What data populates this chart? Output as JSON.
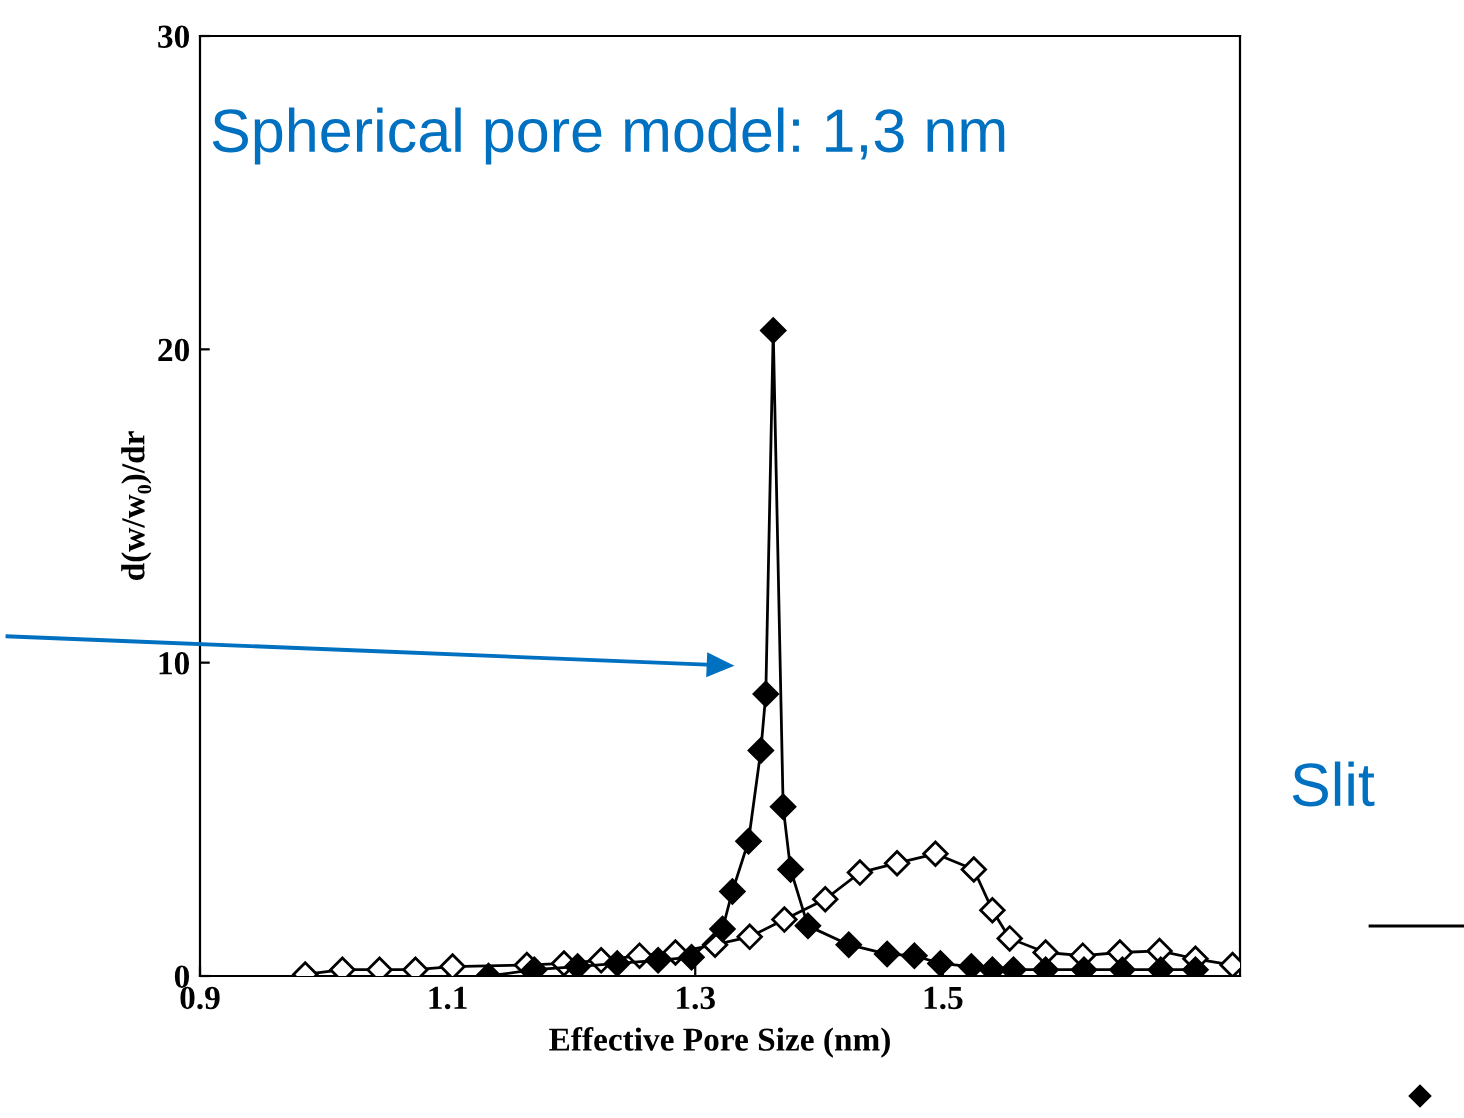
{
  "chart_data": {
    "type": "line",
    "xlabel": "Effective Pore Size (nm)",
    "ylabel": "d(w/w₀)/dr",
    "xlim": [
      0.9,
      1.74
    ],
    "ylim": [
      0,
      30
    ],
    "xticks": [
      0.9,
      1.1,
      1.3,
      1.5
    ],
    "yticks": [
      0,
      10,
      20,
      30
    ],
    "marker": "diamond",
    "grid": false,
    "series": [
      {
        "color": "#000000",
        "x": [
          1.133,
          1.17,
          1.205,
          1.237,
          1.27,
          1.297,
          1.322,
          1.33,
          1.343,
          1.353,
          1.357,
          1.363,
          1.371,
          1.377,
          1.391,
          1.424,
          1.455,
          1.477,
          1.498,
          1.523,
          1.54,
          1.557,
          1.583,
          1.614,
          1.645,
          1.676,
          1.704
        ],
        "values": [
          0,
          0.2,
          0.3,
          0.4,
          0.5,
          0.6,
          1.5,
          2.7,
          4.3,
          7.2,
          9.0,
          20.6,
          5.4,
          3.4,
          1.6,
          1.0,
          0.7,
          0.65,
          0.4,
          0.3,
          0.2,
          0.2,
          0.2,
          0.2,
          0.2,
          0.2,
          0.2
        ]
      },
      {
        "color": "#000000",
        "x": [
          0.985,
          1.015,
          1.045,
          1.074,
          1.104,
          1.164,
          1.194,
          1.224,
          1.255,
          1.284,
          1.316,
          1.344,
          1.372,
          1.405,
          1.433,
          1.463,
          1.494,
          1.525,
          1.54,
          1.554,
          1.583,
          1.613,
          1.643,
          1.675,
          1.704,
          1.734
        ],
        "values": [
          0.05,
          0.2,
          0.2,
          0.2,
          0.3,
          0.35,
          0.4,
          0.5,
          0.65,
          0.75,
          1.0,
          1.25,
          1.8,
          2.45,
          3.3,
          3.6,
          3.9,
          3.4,
          2.1,
          1.2,
          0.75,
          0.65,
          0.75,
          0.8,
          0.55,
          0.35
        ]
      }
    ],
    "annotations": [
      "Spherical pore model: 1,3 nm",
      "Slit"
    ]
  }
}
